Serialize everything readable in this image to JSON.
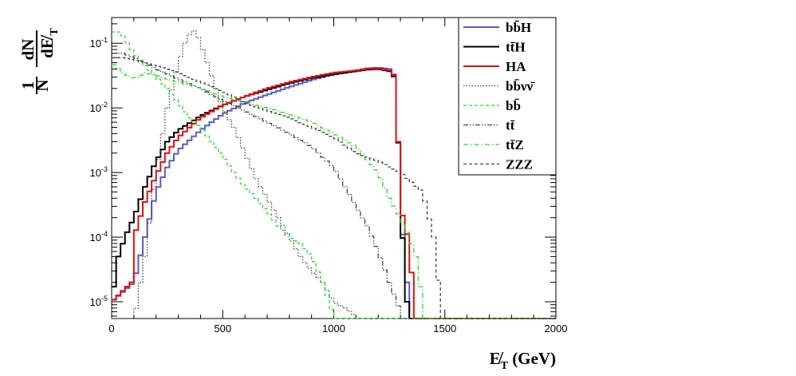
{
  "chart_data": {
    "type": "histogram-line",
    "xlabel": "E̸T (GeV)",
    "xlabel_main": "E̸",
    "xlabel_sub": "T",
    "xlabel_unit": " (GeV)",
    "ylabel_frac_num": "1",
    "ylabel_frac_den": "N",
    "ylabel_dnum": "dN",
    "ylabel_dden": "dE̸",
    "ylabel_dden_sub": "T",
    "xlim": [
      0,
      2000
    ],
    "ylim": [
      5.5e-06,
      0.25
    ],
    "yscale": "log",
    "x_ticks": [
      "0",
      "500",
      "1000",
      "1500",
      "2000"
    ],
    "y_ticks": [
      {
        "base": "10",
        "exp": "-5"
      },
      {
        "base": "10",
        "exp": "-4"
      },
      {
        "base": "10",
        "exp": "-3"
      },
      {
        "base": "10",
        "exp": "-2"
      },
      {
        "base": "10",
        "exp": "-1"
      }
    ],
    "legend_position": "top-right",
    "series": [
      {
        "name": "bb̄H",
        "color": "#5a5ac8",
        "style": "solid",
        "x": [
          0,
          100,
          150,
          200,
          250,
          300,
          400,
          500,
          600,
          700,
          800,
          900,
          1000,
          1100,
          1150,
          1200,
          1250,
          1280,
          1300,
          1320,
          1340
        ],
        "y": [
          1e-05,
          2e-05,
          0.0001,
          0.0005,
          0.0012,
          0.0022,
          0.0045,
          0.008,
          0.012,
          0.016,
          0.021,
          0.027,
          0.033,
          0.038,
          0.041,
          0.042,
          0.04,
          0.03,
          0.0003,
          4e-05,
          1e-05
        ]
      },
      {
        "name": "tt̄H",
        "color": "#000000",
        "style": "solid",
        "x": [
          0,
          30,
          60,
          100,
          150,
          200,
          250,
          300,
          400,
          500,
          600,
          700,
          800,
          900,
          1000,
          1100,
          1150,
          1200,
          1250,
          1280,
          1300,
          1330
        ],
        "y": [
          1e-05,
          5e-05,
          0.0001,
          0.0002,
          0.0006,
          0.0015,
          0.003,
          0.0045,
          0.0075,
          0.011,
          0.015,
          0.019,
          0.024,
          0.029,
          0.033,
          0.037,
          0.039,
          0.04,
          0.037,
          0.028,
          0.0003,
          1e-05
        ]
      },
      {
        "name": "HA",
        "color": "#e01010",
        "style": "solid",
        "x": [
          0,
          90,
          100,
          150,
          200,
          250,
          300,
          400,
          500,
          600,
          700,
          800,
          900,
          1000,
          1100,
          1150,
          1200,
          1250,
          1280,
          1300,
          1340,
          1360
        ],
        "y": [
          1e-05,
          2e-05,
          0.0001,
          0.00035,
          0.0009,
          0.002,
          0.0035,
          0.007,
          0.011,
          0.015,
          0.02,
          0.025,
          0.03,
          0.035,
          0.038,
          0.04,
          0.041,
          0.038,
          0.03,
          0.0003,
          8e-05,
          1e-05
        ]
      },
      {
        "name": "bb̄νν̄",
        "color": "#444444",
        "style": "dotted",
        "x": [
          100,
          150,
          200,
          250,
          300,
          330,
          360,
          380,
          400,
          430,
          460,
          500,
          550,
          600,
          650,
          700,
          750,
          800,
          850,
          900,
          950,
          1000,
          1050,
          1100
        ],
        "y": [
          5e-06,
          5e-05,
          0.001,
          0.01,
          0.05,
          0.1,
          0.16,
          0.15,
          0.1,
          0.05,
          0.025,
          0.01,
          0.005,
          0.002,
          0.0008,
          0.0004,
          0.0002,
          0.0001,
          5e-05,
          3e-05,
          2e-05,
          1e-05,
          8e-06,
          6e-06
        ]
      },
      {
        "name": "bb̄",
        "color": "#22dd22",
        "style": "dashed",
        "x": [
          0,
          20,
          50,
          80,
          100,
          150,
          200,
          250,
          300,
          350,
          400,
          450,
          500,
          550,
          600,
          650,
          700,
          750,
          800,
          850,
          900,
          950,
          1000
        ],
        "y": [
          0.14,
          0.16,
          0.13,
          0.09,
          0.07,
          0.045,
          0.03,
          0.02,
          0.012,
          0.007,
          0.005,
          0.003,
          0.0018,
          0.001,
          0.0006,
          0.0004,
          0.00025,
          0.00015,
          0.0001,
          8e-05,
          5e-05,
          2e-05,
          6e-06
        ]
      },
      {
        "name": "tt̄",
        "color": "#444444",
        "style": "dashdotdot",
        "x": [
          0,
          50,
          100,
          150,
          200,
          300,
          400,
          500,
          600,
          700,
          800,
          900,
          1000,
          1050,
          1100,
          1150,
          1200,
          1250,
          1300
        ],
        "y": [
          0.07,
          0.07,
          0.06,
          0.05,
          0.04,
          0.028,
          0.02,
          0.013,
          0.009,
          0.006,
          0.004,
          0.0025,
          0.0012,
          0.0006,
          0.0003,
          0.00015,
          6e-05,
          2e-05,
          7e-06
        ]
      },
      {
        "name": "tt̄Z",
        "color": "#22dd22",
        "style": "dashdot",
        "x": [
          0,
          50,
          100,
          150,
          200,
          250,
          300,
          400,
          500,
          600,
          700,
          800,
          900,
          1000,
          1100,
          1200,
          1250,
          1300,
          1340,
          1370,
          1400
        ],
        "y": [
          0.05,
          0.035,
          0.028,
          0.035,
          0.032,
          0.028,
          0.025,
          0.02,
          0.015,
          0.012,
          0.01,
          0.008,
          0.006,
          0.004,
          0.0025,
          0.001,
          0.0004,
          0.0002,
          0.0001,
          5e-05,
          1e-05
        ]
      },
      {
        "name": "ZZZ",
        "color": "#444444",
        "style": "dashed",
        "x": [
          0,
          50,
          100,
          200,
          300,
          400,
          500,
          600,
          700,
          800,
          900,
          1000,
          1100,
          1200,
          1300,
          1400,
          1450,
          1480
        ],
        "y": [
          0.06,
          0.06,
          0.055,
          0.045,
          0.035,
          0.025,
          0.018,
          0.012,
          0.009,
          0.007,
          0.005,
          0.0035,
          0.002,
          0.0015,
          0.001,
          0.0005,
          0.0001,
          1e-05
        ]
      }
    ]
  }
}
